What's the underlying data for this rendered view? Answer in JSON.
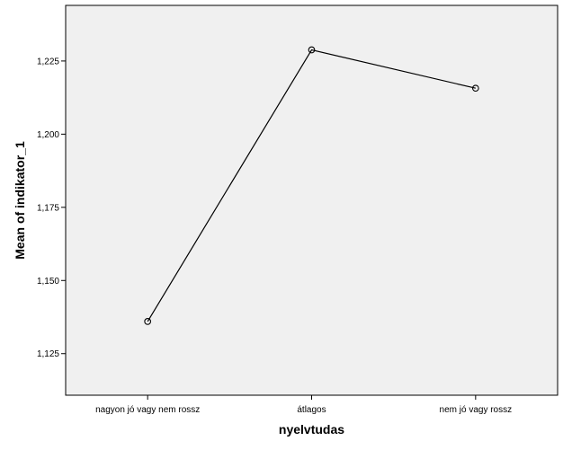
{
  "chart_data": {
    "type": "line",
    "title": "",
    "xlabel": "nyelvtudas",
    "ylabel": "Mean of indikator_1",
    "categories": [
      "nagyon jó vagy nem rossz",
      "átlagos",
      "nem jó vagy rossz"
    ],
    "series": [
      {
        "values": [
          1.136,
          1.2288,
          1.2157
        ]
      }
    ],
    "ylim": [
      1.1108,
      1.244
    ],
    "yticks": [
      1.125,
      1.15,
      1.175,
      1.2,
      1.225
    ],
    "ytick_labels": [
      "1,125",
      "1,150",
      "1,175",
      "1,200",
      "1,225"
    ],
    "grid": false,
    "marker": "open-circle",
    "colors": {
      "plot_background": "#f0f0f0",
      "line": "#000000",
      "frame": "#000000"
    }
  }
}
